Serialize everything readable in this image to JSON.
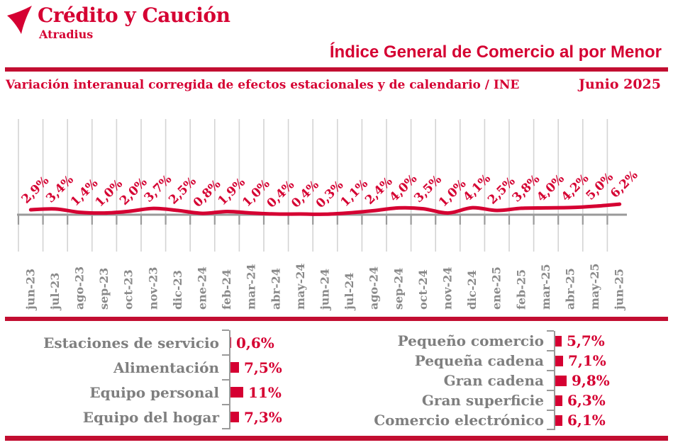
{
  "header": {
    "brand": "Crédito y Caución",
    "brand_sub": "Atradius",
    "title": "Índice General de Comercio al por Menor",
    "subtitle": "Variación interanual corregida de efectos estacionales y de calendario / INE",
    "period": "Junio 2025"
  },
  "colors": {
    "brand_red": "#D50032",
    "rule_red": "#C20E31",
    "label_gray": "#7F7F7F",
    "month_gray": "#8A8A8A",
    "axis_gray": "#9A9A9A",
    "grid_gray": "#D4D4D4"
  },
  "chart_data": [
    {
      "name": "retail-index-monthly",
      "type": "line",
      "title": "Variación interanual corregida de efectos estacionales y de calendario / INE",
      "xlabel": "",
      "ylabel": "",
      "unit": "%",
      "ylim": [
        0,
        55
      ],
      "grid": "vertical",
      "legend": "none",
      "x": [
        "jun-23",
        "jul-23",
        "ago-23",
        "sep-23",
        "oct-23",
        "nov-23",
        "dic-23",
        "ene-24",
        "feb-24",
        "mar-24",
        "abr-24",
        "may-24",
        "jun-24",
        "jul-24",
        "ago-24",
        "sep-24",
        "oct-24",
        "nov-24",
        "dic-24",
        "ene-25",
        "feb-25",
        "mar-25",
        "abr-25",
        "may-25",
        "jun-25"
      ],
      "values": [
        2.9,
        3.4,
        1.4,
        1.0,
        2.0,
        3.7,
        2.5,
        0.8,
        1.9,
        1.0,
        0.4,
        0.4,
        0.3,
        1.1,
        2.4,
        4.0,
        3.5,
        1.0,
        4.1,
        2.5,
        3.8,
        4.0,
        4.2,
        5.0,
        6.2
      ],
      "labels": [
        "2,9%",
        "3,4%",
        "1,4%",
        "1,0%",
        "2,0%",
        "3,7%",
        "2,5%",
        "0,8%",
        "1,9%",
        "1,0%",
        "0,4%",
        "0,4%",
        "0,3%",
        "1,1%",
        "2,4%",
        "4,0%",
        "3,5%",
        "1,0%",
        "4,1%",
        "2,5%",
        "3,8%",
        "4,0%",
        "4,2%",
        "5,0%",
        "6,2%"
      ],
      "line_color": "#D50032"
    },
    {
      "name": "sectors-left",
      "type": "bar",
      "orientation": "horizontal",
      "categories": [
        "Estaciones de servicio",
        "Alimentación",
        "Equipo personal",
        "Equipo del hogar"
      ],
      "values": [
        0.6,
        7.5,
        11,
        7.3
      ],
      "labels": [
        "0,6%",
        "7,5%",
        "11%",
        "7,3%"
      ],
      "bar_color": "#D50032"
    },
    {
      "name": "sectors-right",
      "type": "bar",
      "orientation": "horizontal",
      "categories": [
        "Pequeño comercio",
        "Pequeña cadena",
        "Gran cadena",
        "Gran superficie",
        "Comercio electrónico"
      ],
      "values": [
        5.7,
        7.1,
        9.8,
        6.3,
        6.1
      ],
      "labels": [
        "5,7%",
        "7,1%",
        "9,8%",
        "6,3%",
        "6,1%"
      ],
      "bar_color": "#D50032"
    }
  ]
}
